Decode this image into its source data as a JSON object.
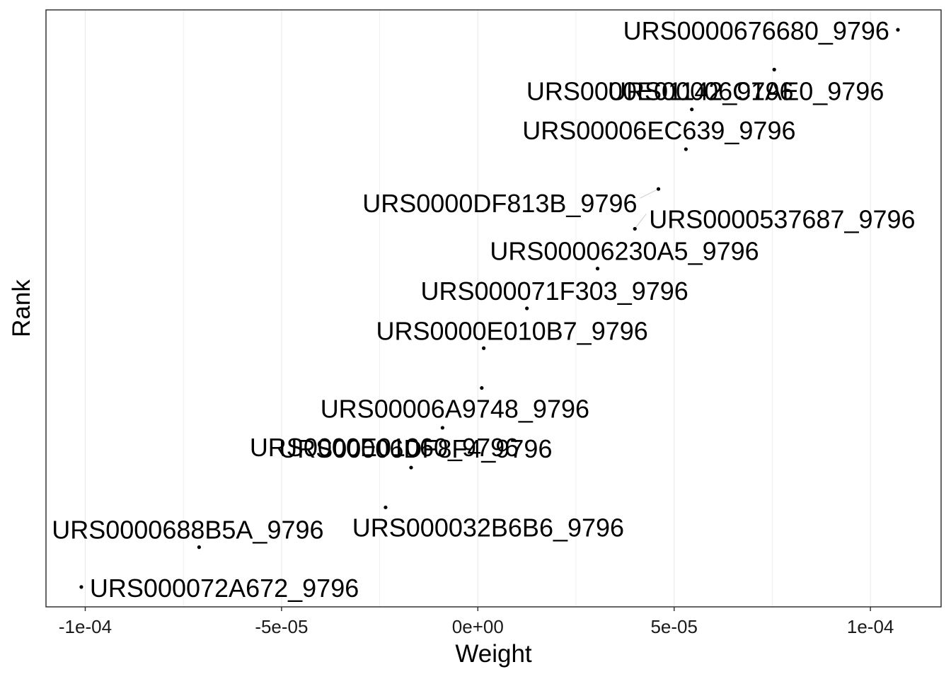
{
  "chart_data": {
    "type": "scatter",
    "xlabel": "Weight",
    "ylabel": "Rank",
    "xlim": [
      -0.00011,
      0.000118
    ],
    "ylim": [
      0.5,
      15.5
    ],
    "grid": true,
    "colors": {
      "point": "#000000",
      "grid": "#ebebeb",
      "border": "#333333",
      "text": "#000000"
    },
    "x_ticks": [
      {
        "value": -0.0001,
        "label": "-1e-04"
      },
      {
        "value": -5e-05,
        "label": "-5e-05"
      },
      {
        "value": 0,
        "label": "0e+00"
      },
      {
        "value": 5e-05,
        "label": "5e-05"
      },
      {
        "value": 0.0001,
        "label": "1e-04"
      }
    ],
    "points": [
      {
        "rank": 1,
        "weight": -0.000101,
        "label": "URS000072A672_9796"
      },
      {
        "rank": 2,
        "weight": -7.1e-05,
        "label": "URS0000688B5A_9796"
      },
      {
        "rank": 3,
        "weight": -2.35e-05,
        "label": "URS000032B6B6_9796"
      },
      {
        "rank": 4,
        "weight": -1.7e-05,
        "label": "URS0000E01060_9796"
      },
      {
        "rank": 5,
        "weight": -9e-06,
        "label": "URS00006DF8F4_9796"
      },
      {
        "rank": 6,
        "weight": 1e-06,
        "label": "URS00006A9748_9796"
      },
      {
        "rank": 7,
        "weight": 1.5e-06,
        "label": "URS0000E010B7_9796"
      },
      {
        "rank": 8,
        "weight": 1.25e-05,
        "label": "URS000071F303_9796"
      },
      {
        "rank": 9,
        "weight": 3.05e-05,
        "label": "URS00006230A5_9796"
      },
      {
        "rank": 10,
        "weight": 4e-05,
        "label": "URS0000537687_9796"
      },
      {
        "rank": 11,
        "weight": 4.6e-05,
        "label": "URS0000DF813B_9796"
      },
      {
        "rank": 12,
        "weight": 5.3e-05,
        "label": "URS00006EC639_9796"
      },
      {
        "rank": 13,
        "weight": 5.45e-05,
        "label": "URS0000E01142_9796"
      },
      {
        "rank": 14,
        "weight": 7.55e-05,
        "label": "URS00006C1AE0_9796"
      },
      {
        "rank": 15,
        "weight": 0.000107,
        "label": "URS0000676680_9796"
      }
    ]
  }
}
